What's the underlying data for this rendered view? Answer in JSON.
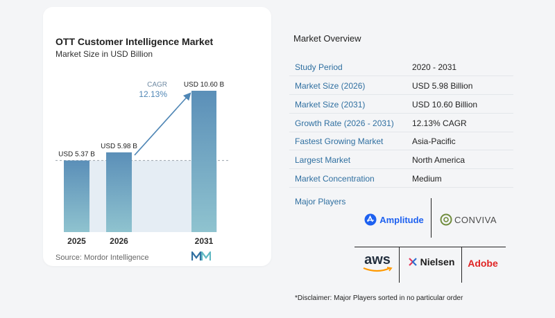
{
  "title": "OTT Customer Intelligence Market",
  "subtitle": "Market Size in USD Billion",
  "source": "Source: Mordor Intelligence",
  "cagr": {
    "label": "CAGR",
    "value": "12.13%"
  },
  "chart_data": {
    "type": "bar",
    "title": "OTT Customer Intelligence Market",
    "subtitle": "Market Size in USD Billion",
    "categories": [
      "2025",
      "2026",
      "2031"
    ],
    "values": [
      5.37,
      5.98,
      10.6
    ],
    "data_labels": [
      "USD 5.37 B",
      "USD 5.98 B",
      "USD 10.60 B"
    ],
    "ylim": [
      0,
      10.6
    ],
    "grid": false,
    "annotation": "CAGR 12.13%"
  },
  "overview": {
    "title": "Market Overview",
    "rows": [
      {
        "key": "Study Period",
        "value": "2020 - 2031"
      },
      {
        "key": "Market Size (2026)",
        "value": "USD 5.98 Billion"
      },
      {
        "key": "Market Size (2031)",
        "value": "USD 10.60 Billion"
      },
      {
        "key": "Growth Rate (2026 - 2031)",
        "value": "12.13% CAGR"
      },
      {
        "key": "Fastest Growing Market",
        "value": "Asia-Pacific"
      },
      {
        "key": "Largest Market",
        "value": "North America"
      },
      {
        "key": "Market Concentration",
        "value": "Medium"
      }
    ]
  },
  "players": {
    "title": "Major Players",
    "names": [
      "Amplitude",
      "CONVIVA",
      "aws",
      "Nielsen",
      "Adobe"
    ]
  },
  "disclaimer": "*Disclaimer: Major Players sorted in no particular order",
  "colors": {
    "accent": "#2f6fa0",
    "bar_top": "#5b8fb8",
    "bar_bottom": "#8fc3cf",
    "band": "#dce7f0"
  }
}
